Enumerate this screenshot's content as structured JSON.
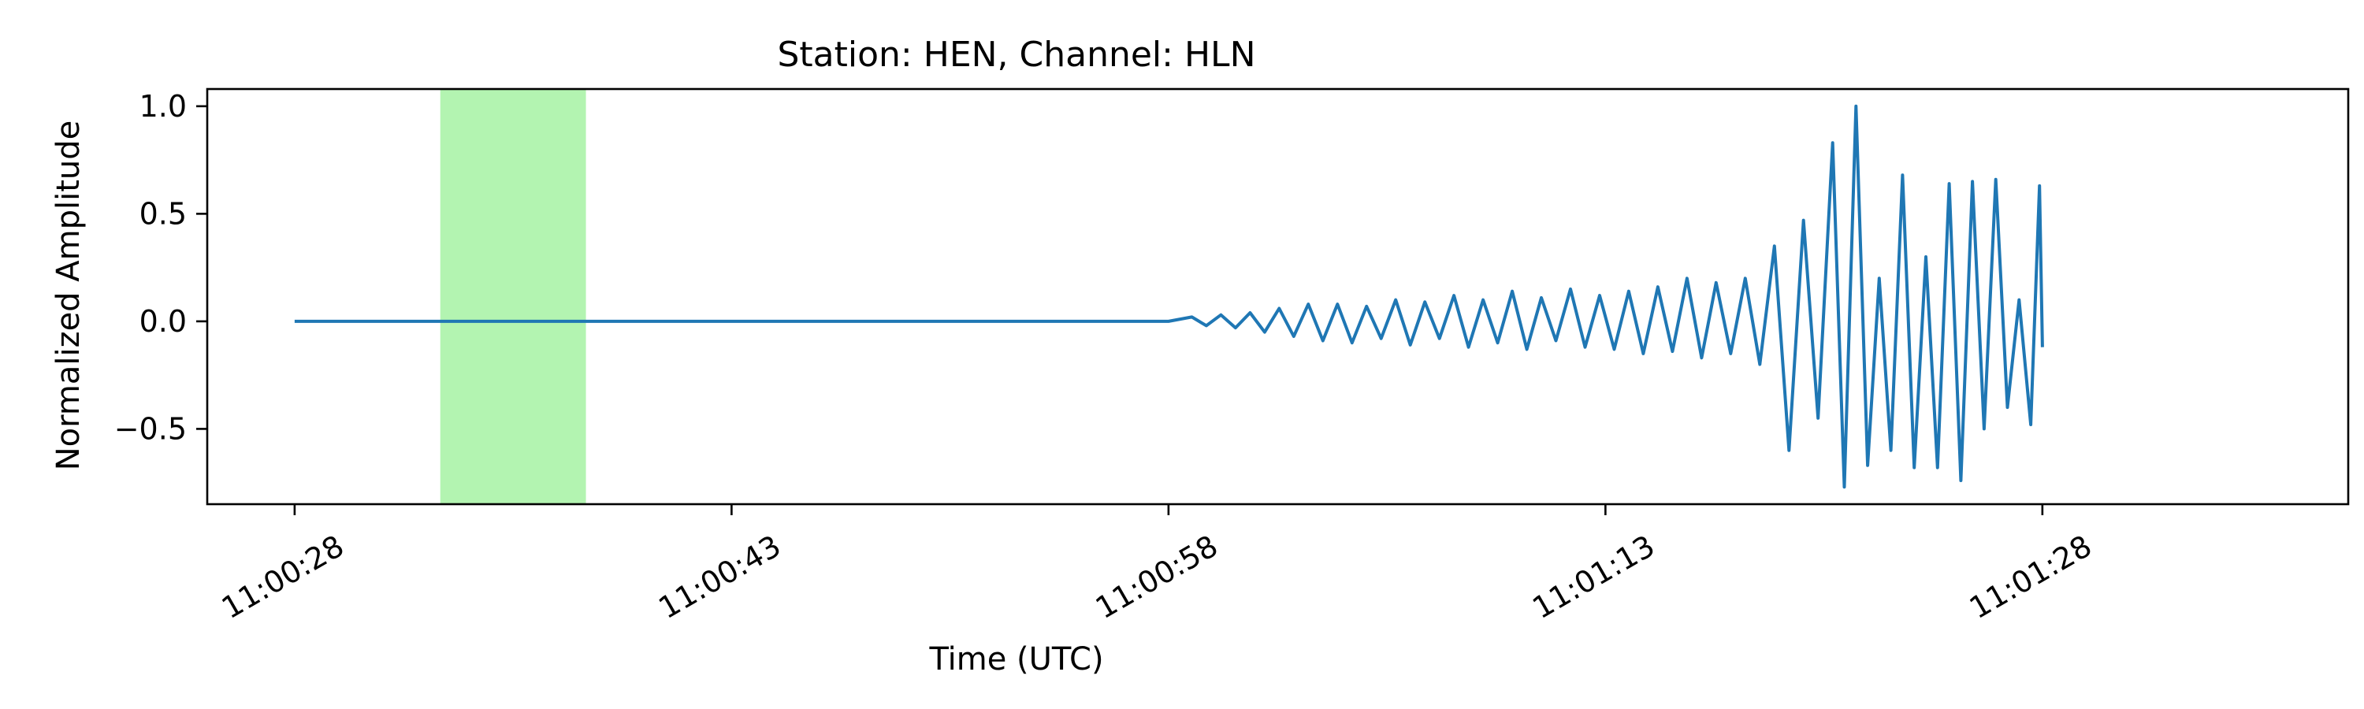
{
  "chart_data": {
    "type": "line",
    "title": "Station: HEN, Channel: HLN",
    "xlabel": "Time (UTC)",
    "ylabel": "Normalized Amplitude",
    "x_unit": "seconds after 11:00:28 UTC",
    "xlim": [
      -3,
      70.5
    ],
    "ylim": [
      -0.85,
      1.08
    ],
    "x_ticks": [
      {
        "value": 0,
        "label": "11:00:28"
      },
      {
        "value": 15,
        "label": "11:00:43"
      },
      {
        "value": 30,
        "label": "11:00:58"
      },
      {
        "value": 45,
        "label": "11:01:13"
      },
      {
        "value": 60,
        "label": "11:01:28"
      }
    ],
    "y_ticks": [
      {
        "value": 1.0,
        "label": "1.0"
      },
      {
        "value": 0.5,
        "label": "0.5"
      },
      {
        "value": 0.0,
        "label": "0.0"
      },
      {
        "value": -0.5,
        "label": "−0.5"
      }
    ],
    "grid": false,
    "legend": "none",
    "highlight_span": {
      "x0": 5.0,
      "x1": 10.0,
      "color": "#b3f4b1"
    },
    "series": [
      {
        "color": "#1f77b4",
        "x": [
          0,
          10,
          20,
          30,
          30.8,
          31.3,
          31.8,
          32.3,
          32.8,
          33.3,
          33.8,
          34.3,
          34.8,
          35.3,
          35.8,
          36.3,
          36.8,
          37.3,
          37.8,
          38.3,
          38.8,
          39.3,
          39.8,
          40.3,
          40.8,
          41.3,
          41.8,
          42.3,
          42.8,
          43.3,
          43.8,
          44.3,
          44.8,
          45.3,
          45.8,
          46.3,
          46.8,
          47.3,
          47.8,
          48.3,
          48.8,
          49.3,
          49.8,
          50.3,
          50.8,
          51.3,
          51.8,
          52.3,
          52.8,
          53.2,
          53.6,
          54.0,
          54.4,
          54.8,
          55.2,
          55.6,
          56.0,
          56.4,
          56.8,
          57.2,
          57.6,
          58.0,
          58.4,
          58.8,
          59.2,
          59.6,
          59.9,
          60.0
        ],
        "y": [
          0.0,
          0.0,
          0.0,
          0.0,
          0.02,
          -0.02,
          0.03,
          -0.03,
          0.04,
          -0.05,
          0.06,
          -0.07,
          0.08,
          -0.09,
          0.08,
          -0.1,
          0.07,
          -0.08,
          0.1,
          -0.11,
          0.09,
          -0.08,
          0.12,
          -0.12,
          0.1,
          -0.1,
          0.14,
          -0.13,
          0.11,
          -0.09,
          0.15,
          -0.12,
          0.12,
          -0.13,
          0.14,
          -0.15,
          0.16,
          -0.14,
          0.2,
          -0.17,
          0.18,
          -0.15,
          0.2,
          -0.2,
          0.35,
          -0.6,
          0.47,
          -0.45,
          0.83,
          -0.77,
          1.0,
          -0.67,
          0.2,
          -0.6,
          0.68,
          -0.68,
          0.3,
          -0.68,
          0.64,
          -0.74,
          0.65,
          -0.5,
          0.66,
          -0.4,
          0.1,
          -0.48,
          0.63,
          -0.12
        ]
      }
    ]
  }
}
